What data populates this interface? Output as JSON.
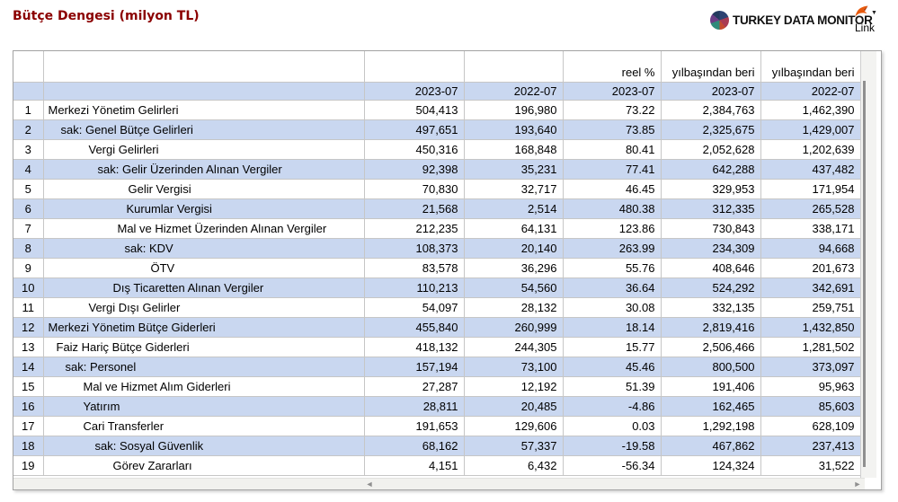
{
  "page": {
    "title": "Bütçe Dengesi (milyon TL)"
  },
  "brand": {
    "name": "TURKEY DATA MONITOR",
    "logo_icon": "pie-chart-icon",
    "link_label": "Link",
    "link_icon": "flag-icon",
    "link_caret": "▼"
  },
  "icons": {
    "scroll_left_glyph": "◄",
    "scroll_right_glyph": "►"
  },
  "colors": {
    "title": "#8b0000",
    "row_alt_blue": "#c9d7f0",
    "grid_border": "#c6c6c6",
    "scroll_track": "#f1f1ee",
    "scroll_arrow": "#8f8f8f",
    "flag_orange": "#e8590c",
    "logo_palette": [
      "#2e4372",
      "#a93a52",
      "#c44a2e",
      "#2e8b7a",
      "#6a3d85",
      "#233a5e"
    ]
  },
  "table": {
    "group_headers": [
      "",
      "",
      "",
      "",
      "reel %",
      "yılbaşından beri",
      "yılbaşından beri"
    ],
    "column_headers": [
      "",
      "",
      "2023-07",
      "2022-07",
      "2023-07",
      "2023-07",
      "2022-07"
    ],
    "rows": [
      {
        "num": "1",
        "label": "Merkezi Yönetim Gelirleri",
        "indent": 5,
        "values": [
          "504,413",
          "196,980",
          "73.22",
          "2,384,763",
          "1,462,390"
        ]
      },
      {
        "num": "2",
        "label": "sak: Genel Bütçe Gelirleri",
        "indent": 19,
        "values": [
          "497,651",
          "193,640",
          "73.85",
          "2,325,675",
          "1,429,007"
        ]
      },
      {
        "num": "3",
        "label": "Vergi Gelirleri",
        "indent": 50,
        "values": [
          "450,316",
          "168,848",
          "80.41",
          "2,052,628",
          "1,202,639"
        ]
      },
      {
        "num": "4",
        "label": "sak: Gelir Üzerinden Alınan Vergiler",
        "indent": 60,
        "values": [
          "92,398",
          "35,231",
          "77.41",
          "642,288",
          "437,482"
        ]
      },
      {
        "num": "5",
        "label": "Gelir Vergisi",
        "indent": 94,
        "values": [
          "70,830",
          "32,717",
          "46.45",
          "329,953",
          "171,954"
        ]
      },
      {
        "num": "6",
        "label": "Kurumlar Vergisi",
        "indent": 92,
        "values": [
          "21,568",
          "2,514",
          "480.38",
          "312,335",
          "265,528"
        ]
      },
      {
        "num": "7",
        "label": "Mal ve Hizmet Üzerinden Alınan Vergiler",
        "indent": 82,
        "values": [
          "212,235",
          "64,131",
          "123.86",
          "730,843",
          "338,171"
        ]
      },
      {
        "num": "8",
        "label": "sak: KDV",
        "indent": 90,
        "values": [
          "108,373",
          "20,140",
          "263.99",
          "234,309",
          "94,668"
        ]
      },
      {
        "num": "9",
        "label": "ÖTV",
        "indent": 119,
        "values": [
          "83,578",
          "36,296",
          "55.76",
          "408,646",
          "201,673"
        ]
      },
      {
        "num": "10",
        "label": "Dış Ticaretten Alınan Vergiler",
        "indent": 77,
        "values": [
          "110,213",
          "54,560",
          "36.64",
          "524,292",
          "342,691"
        ]
      },
      {
        "num": "11",
        "label": "Vergi Dışı Gelirler",
        "indent": 50,
        "values": [
          "54,097",
          "28,132",
          "30.08",
          "332,135",
          "259,751"
        ]
      },
      {
        "num": "12",
        "label": "Merkezi Yönetim Bütçe Giderleri",
        "indent": 5,
        "values": [
          "455,840",
          "260,999",
          "18.14",
          "2,819,416",
          "1,432,850"
        ]
      },
      {
        "num": "13",
        "label": "Faiz Hariç Bütçe Giderleri",
        "indent": 14,
        "values": [
          "418,132",
          "244,305",
          "15.77",
          "2,506,466",
          "1,281,502"
        ]
      },
      {
        "num": "14",
        "label": "sak: Personel",
        "indent": 24,
        "values": [
          "157,194",
          "73,100",
          "45.46",
          "800,500",
          "373,097"
        ]
      },
      {
        "num": "15",
        "label": "Mal ve Hizmet Alım Giderleri",
        "indent": 44,
        "values": [
          "27,287",
          "12,192",
          "51.39",
          "191,406",
          "95,963"
        ]
      },
      {
        "num": "16",
        "label": "Yatırım",
        "indent": 44,
        "values": [
          "28,811",
          "20,485",
          "-4.86",
          "162,465",
          "85,603"
        ]
      },
      {
        "num": "17",
        "label": "Cari Transferler",
        "indent": 44,
        "values": [
          "191,653",
          "129,606",
          "0.03",
          "1,292,198",
          "628,109"
        ]
      },
      {
        "num": "18",
        "label": "sak: Sosyal Güvenlik",
        "indent": 57,
        "values": [
          "68,162",
          "57,337",
          "-19.58",
          "467,862",
          "237,413"
        ]
      },
      {
        "num": "19",
        "label": "Görev Zararları",
        "indent": 77,
        "values": [
          "4,151",
          "6,432",
          "-56.34",
          "124,324",
          "31,522"
        ]
      }
    ]
  }
}
